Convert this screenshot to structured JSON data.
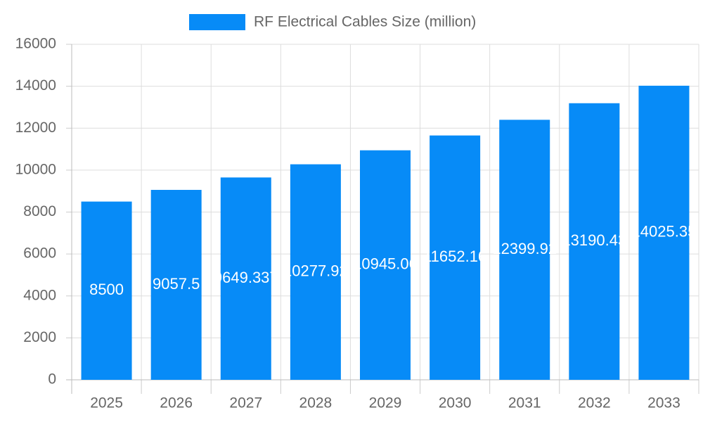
{
  "chart_data": {
    "type": "bar",
    "categories": [
      "2025",
      "2026",
      "2027",
      "2028",
      "2029",
      "2030",
      "2031",
      "2032",
      "2033"
    ],
    "series": [
      {
        "name": "RF Electrical Cables Size (million)",
        "color": "#078bf7",
        "values": [
          8500,
          9057.5,
          9649.337,
          10277.92,
          10945.06,
          11652.16,
          12399.92,
          13190.43,
          14025.35
        ]
      }
    ],
    "ylim": [
      0,
      16000
    ],
    "yticks": [
      0,
      2000,
      4000,
      6000,
      8000,
      10000,
      12000,
      14000,
      16000
    ],
    "grid": true,
    "legend": "top"
  }
}
